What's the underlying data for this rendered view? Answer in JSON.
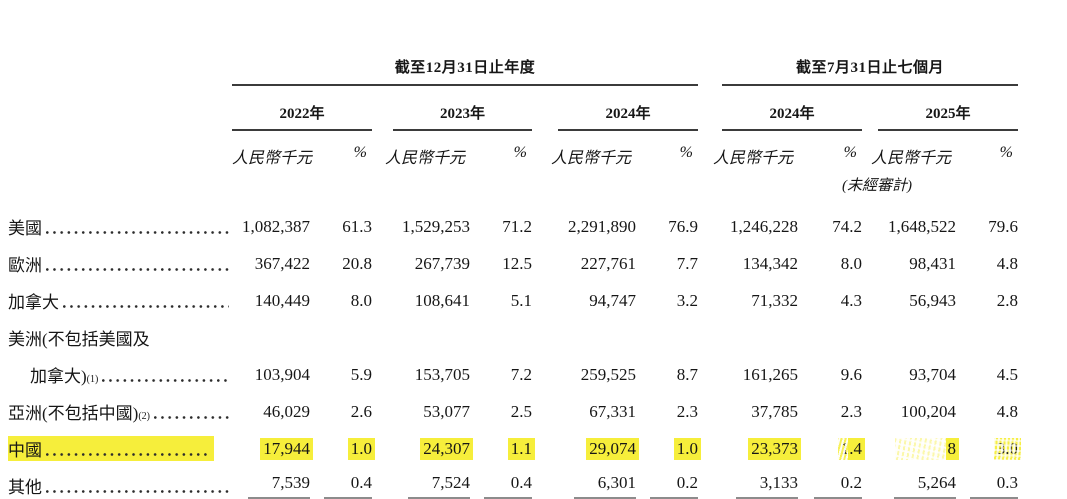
{
  "colors": {
    "highlight": "#f6ee3b",
    "header_rule": "#3b3b3b",
    "total_rule": "#8c8c8c",
    "text": "#161616",
    "background": "#ffffff"
  },
  "table": {
    "period_groups": [
      {
        "label": "截至12月31日止年度",
        "years": [
          "2022年",
          "2023年",
          "2024年"
        ]
      },
      {
        "label": "截至7月31日止七個月",
        "years": [
          "2024年",
          "2025年"
        ]
      }
    ],
    "unit_label": "人民幣千元",
    "pct_label": "%",
    "unaudited_note": "(未經審計)",
    "rows": [
      {
        "label": "美國",
        "leader": true,
        "cells": [
          {
            "t": "1,082,387"
          },
          {
            "t": "61.3"
          },
          {
            "t": "1,529,253"
          },
          {
            "t": "71.2"
          },
          {
            "t": "2,291,890"
          },
          {
            "t": "76.9"
          },
          {
            "t": "1,246,228"
          },
          {
            "t": "74.2"
          },
          {
            "t": "1,648,522"
          },
          {
            "t": "79.6"
          }
        ]
      },
      {
        "label": "歐洲",
        "leader": true,
        "cells": [
          {
            "t": "367,422"
          },
          {
            "t": "20.8"
          },
          {
            "t": "267,739"
          },
          {
            "t": "12.5"
          },
          {
            "t": "227,761"
          },
          {
            "t": "7.7"
          },
          {
            "t": "134,342"
          },
          {
            "t": "8.0"
          },
          {
            "t": "98,431"
          },
          {
            "t": "4.8"
          }
        ]
      },
      {
        "label": "加拿大",
        "leader": true,
        "cells": [
          {
            "t": "140,449"
          },
          {
            "t": "8.0"
          },
          {
            "t": "108,641"
          },
          {
            "t": "5.1"
          },
          {
            "t": "94,747"
          },
          {
            "t": "3.2"
          },
          {
            "t": "71,332"
          },
          {
            "t": "4.3"
          },
          {
            "t": "56,943"
          },
          {
            "t": "2.8"
          }
        ]
      },
      {
        "label": "美洲(不包括美國及",
        "leader": false,
        "cells": []
      },
      {
        "label": "加拿大)",
        "sup": "(1)",
        "indent": true,
        "leader": true,
        "cells": [
          {
            "t": "103,904"
          },
          {
            "t": "5.9"
          },
          {
            "t": "153,705"
          },
          {
            "t": "7.2"
          },
          {
            "t": "259,525"
          },
          {
            "t": "8.7"
          },
          {
            "t": "161,265"
          },
          {
            "t": "9.6"
          },
          {
            "t": "93,704"
          },
          {
            "t": "4.5"
          }
        ]
      },
      {
        "label": "亞洲(不包括中國)",
        "sup": "(2)",
        "leader": true,
        "cells": [
          {
            "t": "46,029"
          },
          {
            "t": "2.6"
          },
          {
            "t": "53,077"
          },
          {
            "t": "2.5"
          },
          {
            "t": "67,331"
          },
          {
            "t": "2.3"
          },
          {
            "t": "37,785"
          },
          {
            "t": "2.3"
          },
          {
            "t": "100,204"
          },
          {
            "t": "4.8"
          }
        ]
      },
      {
        "label": "中國",
        "leader": true,
        "hl_label": true,
        "cells": [
          {
            "t": "17,944",
            "hl": true
          },
          {
            "t": "1.0",
            "hl": true
          },
          {
            "t": "24,307",
            "hl": true
          },
          {
            "t": "1.1",
            "hl": true
          },
          {
            "t": "29,074",
            "hl": true
          },
          {
            "t": "1.0",
            "hl": true
          },
          {
            "t": "23,373",
            "hl": true
          },
          {
            "t": "1.4",
            "hl": true,
            "scribble": "light"
          },
          {
            "t": "8",
            "hl": true,
            "scribble": "heavy"
          },
          {
            "t": "3.0",
            "hl": true,
            "scribble": "med"
          }
        ]
      },
      {
        "label": "其他",
        "leader": true,
        "underline": true,
        "cells": [
          {
            "t": "7,539"
          },
          {
            "t": "0.4"
          },
          {
            "t": "7,524"
          },
          {
            "t": "0.4"
          },
          {
            "t": "6,301"
          },
          {
            "t": "0.2"
          },
          {
            "t": "3,133"
          },
          {
            "t": "0.2"
          },
          {
            "t": "5,264"
          },
          {
            "t": "0.3"
          }
        ]
      }
    ]
  }
}
